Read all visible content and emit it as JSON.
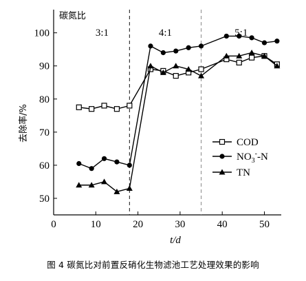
{
  "caption": "图 4 碳氮比对前置反硝化生物滤池工艺处理效果的影响",
  "chart_data": {
    "type": "line",
    "title": "",
    "xlabel": "t/d",
    "ylabel": "去除率/%",
    "xlim": [
      0,
      54
    ],
    "ylim": [
      45,
      107
    ],
    "xticks": [
      0,
      10,
      20,
      30,
      40,
      50
    ],
    "yticks": [
      50,
      60,
      70,
      80,
      90,
      100
    ],
    "grid": false,
    "legend_position": "right",
    "corner_label": "碳氮比",
    "phases": [
      {
        "label": "3:1",
        "x_center": 11.5
      },
      {
        "label": "4:1",
        "x_center": 26.5
      },
      {
        "label": "5:1",
        "x_center": 44.5
      }
    ],
    "phase_boundaries": [
      {
        "x": 18,
        "color": "#111111"
      },
      {
        "x": 35,
        "color": "#888888"
      }
    ],
    "series": [
      {
        "name": "COD",
        "marker": "square-open",
        "x": [
          6,
          9,
          12,
          15,
          18,
          23,
          26,
          29,
          32,
          35,
          41,
          44,
          47,
          50,
          53
        ],
        "y": [
          77.5,
          77,
          78,
          77,
          78,
          89,
          88.5,
          87,
          88,
          89,
          92,
          91,
          92.5,
          93,
          90.5
        ]
      },
      {
        "name": "NO3--N",
        "legend_text": {
          "main": "NO",
          "sub": "3",
          "sup": "-",
          "rest": "-N"
        },
        "marker": "circle-filled",
        "x": [
          6,
          9,
          12,
          15,
          18,
          23,
          26,
          29,
          32,
          35,
          41,
          44,
          47,
          50,
          53
        ],
        "y": [
          60.5,
          59,
          62,
          61,
          60,
          96,
          94,
          94.5,
          95.5,
          96,
          99,
          99,
          98.5,
          97,
          97.5
        ]
      },
      {
        "name": "TN",
        "marker": "triangle-filled",
        "x": [
          6,
          9,
          12,
          15,
          18,
          23,
          26,
          29,
          32,
          35,
          41,
          44,
          47,
          50,
          53
        ],
        "y": [
          54,
          54,
          55,
          52,
          53,
          90,
          88,
          90,
          89,
          87,
          93,
          93,
          94,
          93,
          90
        ]
      }
    ]
  }
}
